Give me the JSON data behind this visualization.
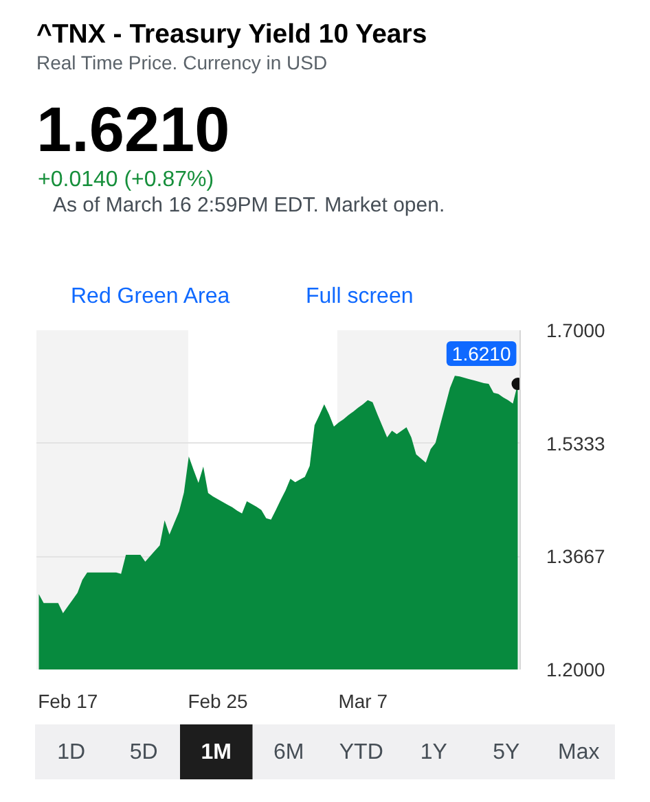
{
  "chart_data": {
    "type": "area",
    "title": "^TNX - Treasury Yield 10 Years",
    "subtitle": "Real Time Price. Currency in USD",
    "categories": [
      null,
      null,
      null,
      null,
      null,
      null,
      "Feb 17",
      null,
      null,
      null,
      null,
      null,
      null,
      null,
      null,
      null,
      null,
      null,
      null,
      null,
      null,
      null,
      null,
      null,
      null,
      null,
      null,
      null,
      null,
      null,
      null,
      null,
      null,
      null,
      null,
      null,
      null,
      "Feb 25",
      null,
      null,
      null,
      null,
      null,
      null,
      null,
      null,
      null,
      null,
      null,
      null,
      null,
      null,
      null,
      null,
      null,
      null,
      null,
      null,
      null,
      null,
      null,
      null,
      null,
      null,
      null,
      null,
      null,
      "Mar 7",
      null,
      null,
      null,
      null,
      null,
      null,
      null,
      null,
      null,
      null,
      null,
      null,
      null,
      null,
      null,
      null,
      null,
      null,
      null,
      null,
      null,
      null,
      null,
      null,
      null,
      null,
      null,
      null,
      null,
      null,
      null,
      null
    ],
    "values": [
      1.311,
      1.298,
      1.298,
      1.298,
      1.298,
      1.283,
      1.293,
      1.303,
      1.313,
      1.332,
      1.343,
      1.343,
      1.343,
      1.343,
      1.343,
      1.343,
      1.343,
      1.341,
      1.369,
      1.369,
      1.369,
      1.369,
      1.359,
      1.367,
      1.375,
      1.383,
      1.42,
      1.399,
      1.416,
      1.433,
      1.461,
      1.514,
      1.494,
      1.475,
      1.499,
      1.46,
      1.455,
      1.451,
      1.447,
      1.443,
      1.439,
      1.434,
      1.43,
      1.448,
      1.444,
      1.44,
      1.435,
      1.423,
      1.421,
      1.435,
      1.45,
      1.464,
      1.481,
      1.476,
      1.48,
      1.484,
      1.5,
      1.56,
      1.575,
      1.591,
      1.576,
      1.558,
      1.564,
      1.569,
      1.575,
      1.58,
      1.586,
      1.591,
      1.597,
      1.594,
      1.576,
      1.559,
      1.542,
      1.552,
      1.547,
      1.552,
      1.557,
      1.542,
      1.517,
      1.511,
      1.505,
      1.525,
      1.534,
      1.561,
      1.588,
      1.615,
      1.633,
      1.632,
      1.63,
      1.628,
      1.626,
      1.624,
      1.622,
      1.621,
      1.608,
      1.606,
      1.601,
      1.597,
      1.592,
      1.621
    ],
    "color": "#078a3e",
    "ylim": [
      1.2,
      1.7
    ],
    "yticks": [
      {
        "value": 1.2,
        "label": "1.2000"
      },
      1.3667,
      1.5333,
      {
        "value": 1.7,
        "label": "1.7000"
      }
    ],
    "grid": "y",
    "annotations": [
      "1.6210",
      "+0.0140 (+0.87%)",
      "As of March 16 2:59PM EDT. Market open.",
      "Red Green Area",
      "Full screen",
      "1D",
      "5D",
      "1M",
      "6M",
      "YTD",
      "1Y",
      "5Y",
      "Max",
      {
        "text": "1.6210",
        "y": 1.621
      }
    ]
  }
}
